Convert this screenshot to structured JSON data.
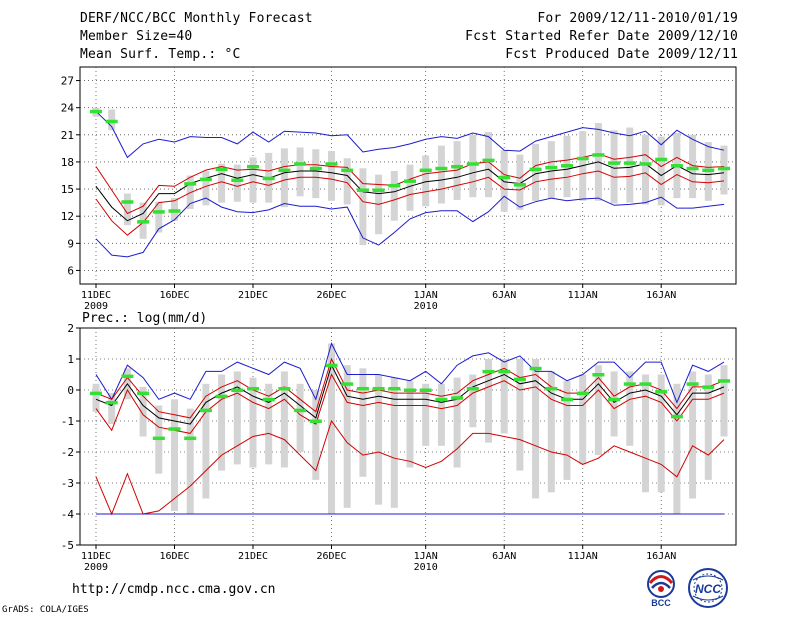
{
  "header": {
    "title": "DERF/NCC/BCC Monthly Forecast",
    "member_size": "Member Size=40",
    "variable1": "Mean Surf. Temp.: °C",
    "period": "For 2009/12/11-2010/01/19",
    "started": "Fcst Started Refer Date 2009/12/10",
    "produced": "Fcst Produced Date 2009/12/11"
  },
  "footer": {
    "url": "http://cmdp.ncc.cma.gov.cn",
    "grads": "GrADS: COLA/IGES"
  },
  "logos": {
    "bcc": "BCC",
    "ncc": "NCC"
  },
  "colors": {
    "box": "#d4d4d4",
    "mean": "#000000",
    "red": "#d40000",
    "blue": "#1c1cd0",
    "green": "#33e033",
    "grid": "#555555"
  },
  "chart_data": [
    {
      "type": "line",
      "title": "Mean Surf. Temp.: °C",
      "ylim": [
        4.5,
        28.5
      ],
      "yticks": [
        6,
        9,
        12,
        15,
        18,
        21,
        24,
        27
      ],
      "xtick_labels": [
        {
          "day": 0,
          "label": "11DEC",
          "sub": "2009"
        },
        {
          "day": 5,
          "label": "16DEC",
          "sub": ""
        },
        {
          "day": 10,
          "label": "21DEC",
          "sub": ""
        },
        {
          "day": 15,
          "label": "26DEC",
          "sub": ""
        },
        {
          "day": 21,
          "label": "1JAN",
          "sub": "2010"
        },
        {
          "day": 26,
          "label": "6JAN",
          "sub": ""
        },
        {
          "day": 31,
          "label": "11JAN",
          "sub": ""
        },
        {
          "day": 36,
          "label": "16JAN",
          "sub": ""
        }
      ],
      "days": 40,
      "green_markers": [
        23.6,
        22.5,
        13.6,
        11.4,
        12.5,
        12.6,
        15.6,
        16.1,
        17.2,
        16.0,
        17.5,
        16.2,
        17.1,
        17.8,
        17.3,
        17.8,
        17.1,
        14.9,
        14.9,
        15.4,
        15.9,
        17.1,
        17.3,
        17.5,
        17.8,
        18.2,
        16.3,
        15.5,
        17.2,
        17.4,
        17.6,
        18.4,
        18.8,
        17.9,
        17.9,
        17.8,
        18.3,
        17.6,
        17.3,
        17.1,
        17.3
      ],
      "box_high": [
        24.0,
        23.8,
        14.5,
        13.5,
        13.6,
        14.0,
        16.5,
        17.0,
        17.8,
        17.7,
        18.5,
        19.0,
        19.5,
        19.6,
        19.4,
        19.2,
        18.4,
        17.3,
        16.6,
        17.0,
        17.7,
        18.7,
        19.8,
        20.3,
        21.0,
        21.3,
        19.3,
        18.8,
        20.0,
        20.3,
        20.9,
        21.4,
        22.3,
        21.5,
        21.8,
        21.0,
        20.8,
        21.2,
        21.0,
        20.2,
        19.8
      ],
      "box_low": [
        23.0,
        21.5,
        11.0,
        9.5,
        10.2,
        11.5,
        12.8,
        13.2,
        13.5,
        13.6,
        13.5,
        13.5,
        13.0,
        14.2,
        14.0,
        13.7,
        13.3,
        8.8,
        10.0,
        11.5,
        12.6,
        13.1,
        13.4,
        13.8,
        14.1,
        14.1,
        12.5,
        12.7,
        13.7,
        14.0,
        14.1,
        13.7,
        13.7,
        13.4,
        13.5,
        13.3,
        13.2,
        14.0,
        14.0,
        13.7,
        14.4
      ],
      "series": [
        {
          "name": "blue_max",
          "color": "blue",
          "values": [
            23.6,
            21.9,
            18.5,
            20.0,
            20.5,
            20.2,
            20.8,
            20.7,
            20.7,
            20.0,
            21.3,
            20.2,
            21.4,
            21.3,
            21.2,
            20.9,
            21.0,
            19.1,
            19.4,
            19.6,
            20.0,
            20.5,
            20.8,
            20.6,
            21.2,
            20.8,
            19.3,
            19.2,
            20.3,
            20.8,
            21.3,
            21.8,
            21.6,
            21.2,
            20.9,
            21.4,
            19.9,
            21.5,
            20.5,
            19.7,
            19.3
          ]
        },
        {
          "name": "red_upper",
          "color": "red",
          "values": [
            17.5,
            14.9,
            12.3,
            13.1,
            15.4,
            15.3,
            16.3,
            17.1,
            17.5,
            17.1,
            17.2,
            17.0,
            17.5,
            17.7,
            17.7,
            17.5,
            17.4,
            15.6,
            15.5,
            15.4,
            16.1,
            16.7,
            16.9,
            17.1,
            17.8,
            18.0,
            16.6,
            16.2,
            17.6,
            18.0,
            18.2,
            18.5,
            18.9,
            18.3,
            18.5,
            18.8,
            17.5,
            18.5,
            17.6,
            17.4,
            17.5
          ]
        },
        {
          "name": "ensemble_mean",
          "color": "mean",
          "values": [
            15.3,
            13.0,
            11.5,
            12.3,
            14.5,
            14.5,
            15.6,
            16.2,
            16.7,
            16.2,
            16.6,
            16.2,
            16.8,
            17.0,
            17.0,
            16.8,
            16.5,
            14.7,
            14.5,
            14.7,
            15.3,
            15.8,
            16.0,
            16.3,
            16.8,
            17.2,
            15.8,
            15.6,
            16.7,
            17.0,
            17.2,
            17.6,
            18.0,
            17.3,
            17.4,
            17.8,
            16.5,
            17.6,
            16.7,
            16.6,
            16.8
          ]
        },
        {
          "name": "red_lower",
          "color": "red",
          "values": [
            13.9,
            11.5,
            9.9,
            11.3,
            13.5,
            13.7,
            14.6,
            15.3,
            15.8,
            15.3,
            15.8,
            15.4,
            16.0,
            16.3,
            16.3,
            16.1,
            15.7,
            13.6,
            13.3,
            13.8,
            14.4,
            14.7,
            15.0,
            15.4,
            15.8,
            16.3,
            15.0,
            14.9,
            15.8,
            16.1,
            16.3,
            16.7,
            17.0,
            16.3,
            16.4,
            16.8,
            15.5,
            16.6,
            15.8,
            15.7,
            15.9
          ]
        },
        {
          "name": "blue_min",
          "color": "blue",
          "values": [
            9.5,
            7.7,
            7.5,
            8.0,
            10.6,
            11.6,
            13.4,
            14.0,
            13.0,
            12.5,
            12.4,
            12.7,
            13.4,
            13.1,
            13.1,
            12.8,
            13.0,
            9.6,
            8.8,
            10.2,
            11.7,
            12.4,
            12.6,
            12.6,
            11.4,
            12.5,
            14.2,
            13.0,
            13.6,
            14.0,
            13.7,
            13.9,
            14.0,
            13.2,
            13.3,
            13.5,
            14.1,
            12.9,
            12.9,
            13.1,
            13.3
          ]
        }
      ]
    },
    {
      "type": "line",
      "title": "Prec.: log(mm/d)",
      "ylim": [
        -5,
        2
      ],
      "yticks": [
        -5,
        -4,
        -3,
        -2,
        -1,
        0,
        1,
        2
      ],
      "xtick_labels": [
        {
          "day": 0,
          "label": "11DEC",
          "sub": "2009"
        },
        {
          "day": 5,
          "label": "16DEC",
          "sub": ""
        },
        {
          "day": 10,
          "label": "21DEC",
          "sub": ""
        },
        {
          "day": 15,
          "label": "26DEC",
          "sub": ""
        },
        {
          "day": 21,
          "label": "1JAN",
          "sub": "2010"
        },
        {
          "day": 26,
          "label": "6JAN",
          "sub": ""
        },
        {
          "day": 31,
          "label": "11JAN",
          "sub": ""
        },
        {
          "day": 36,
          "label": "16JAN",
          "sub": ""
        }
      ],
      "days": 40,
      "green_markers": [
        -0.1,
        -0.4,
        0.45,
        -0.1,
        -1.55,
        -1.25,
        -1.55,
        -0.65,
        -0.2,
        0.0,
        0.05,
        -0.3,
        0.05,
        -0.65,
        -1.0,
        0.8,
        0.2,
        0.05,
        0.05,
        0.05,
        0.0,
        0.0,
        -0.3,
        -0.25,
        0.05,
        0.6,
        0.6,
        0.35,
        0.7,
        0.05,
        -0.3,
        -0.1,
        0.5,
        -0.3,
        0.2,
        0.2,
        -0.05,
        -0.85,
        0.2,
        0.1,
        0.3
      ],
      "box_high": [
        0.2,
        -0.1,
        0.7,
        0.1,
        -0.5,
        -0.3,
        -0.6,
        0.2,
        0.5,
        0.6,
        0.4,
        0.2,
        0.6,
        0.2,
        0.0,
        1.5,
        0.8,
        0.7,
        0.5,
        0.4,
        0.3,
        0.2,
        0.2,
        0.4,
        0.5,
        1.0,
        1.0,
        1.0,
        1.0,
        0.6,
        0.3,
        0.5,
        0.8,
        0.6,
        0.6,
        0.5,
        0.5,
        0.2,
        0.6,
        0.5,
        0.8
      ],
      "box_low": [
        -0.7,
        -1.1,
        -0.3,
        -1.5,
        -2.7,
        -3.9,
        -4.0,
        -3.5,
        -2.6,
        -2.4,
        -2.5,
        -2.4,
        -2.5,
        -2.0,
        -2.9,
        -4.0,
        -3.8,
        -2.8,
        -3.7,
        -3.8,
        -2.5,
        -1.8,
        -1.8,
        -2.5,
        -1.2,
        -1.7,
        -1.4,
        -2.6,
        -3.5,
        -3.3,
        -2.9,
        -2.4,
        -2.1,
        -1.5,
        -1.8,
        -3.3,
        -3.3,
        -4.0,
        -3.5,
        -2.9,
        -1.5
      ],
      "series": [
        {
          "name": "blue_max",
          "color": "blue",
          "values": [
            0.5,
            -0.3,
            0.8,
            0.4,
            -0.3,
            -0.1,
            -0.3,
            0.6,
            0.6,
            0.9,
            0.7,
            0.5,
            0.9,
            0.7,
            -0.3,
            1.5,
            0.5,
            0.5,
            0.5,
            0.4,
            0.3,
            0.6,
            0.2,
            0.8,
            1.1,
            1.2,
            0.9,
            1.1,
            0.6,
            0.6,
            0.3,
            0.5,
            0.9,
            0.9,
            0.4,
            0.9,
            0.9,
            -0.4,
            0.8,
            0.6,
            0.9
          ]
        },
        {
          "name": "red_upper",
          "color": "red",
          "values": [
            -0.1,
            -0.3,
            0.4,
            -0.2,
            -0.7,
            -0.8,
            -0.9,
            -0.2,
            0.1,
            0.3,
            0.0,
            -0.2,
            0.1,
            -0.3,
            -0.7,
            1.0,
            0.0,
            -0.1,
            0.0,
            -0.1,
            -0.1,
            -0.1,
            -0.2,
            -0.1,
            0.3,
            0.5,
            0.7,
            0.4,
            0.5,
            0.1,
            -0.1,
            -0.1,
            0.4,
            -0.2,
            0.1,
            0.2,
            0.0,
            -0.6,
            0.1,
            0.1,
            0.3
          ]
        },
        {
          "name": "ensemble_mean",
          "color": "mean",
          "values": [
            -0.3,
            -0.5,
            0.2,
            -0.5,
            -0.9,
            -1.0,
            -1.1,
            -0.4,
            -0.1,
            0.1,
            -0.2,
            -0.4,
            -0.1,
            -0.5,
            -0.9,
            0.8,
            -0.2,
            -0.3,
            -0.2,
            -0.3,
            -0.3,
            -0.3,
            -0.4,
            -0.3,
            0.1,
            0.3,
            0.5,
            0.2,
            0.3,
            -0.1,
            -0.3,
            -0.3,
            0.2,
            -0.4,
            -0.1,
            0.0,
            -0.2,
            -0.8,
            -0.1,
            -0.1,
            0.1
          ]
        },
        {
          "name": "red_lower",
          "color": "red",
          "values": [
            -0.6,
            -1.3,
            0.0,
            -0.8,
            -1.2,
            -1.3,
            -1.4,
            -0.7,
            -0.3,
            -0.1,
            -0.4,
            -0.6,
            -0.3,
            -0.8,
            -1.1,
            0.5,
            -0.4,
            -0.5,
            -0.4,
            -0.5,
            -0.5,
            -0.5,
            -0.6,
            -0.5,
            -0.1,
            0.1,
            0.3,
            0.0,
            0.1,
            -0.3,
            -0.5,
            -0.5,
            0.0,
            -0.6,
            -0.3,
            -0.2,
            -0.4,
            -1.0,
            -0.3,
            -0.3,
            -0.1
          ]
        },
        {
          "name": "red_min",
          "color": "red",
          "values": [
            -2.8,
            -4.0,
            -2.7,
            -4.0,
            -3.9,
            -3.5,
            -3.1,
            -2.6,
            -2.1,
            -1.8,
            -1.5,
            -1.4,
            -1.6,
            -2.1,
            -2.6,
            -1.0,
            -1.7,
            -2.1,
            -2.0,
            -2.2,
            -2.3,
            -2.5,
            -2.3,
            -1.9,
            -1.4,
            -1.4,
            -1.5,
            -1.6,
            -1.8,
            -2.0,
            -2.1,
            -2.4,
            -2.2,
            -1.8,
            -2.0,
            -2.2,
            -2.4,
            -2.8,
            -1.8,
            -2.1,
            -1.6
          ]
        },
        {
          "name": "blue_min",
          "color": "blue",
          "values": [
            -4.0,
            -4.0,
            -4.0,
            -4.0,
            -4.0,
            -4.0,
            -4.0,
            -4.0,
            -4.0,
            -4.0,
            -4.0,
            -4.0,
            -4.0,
            -4.0,
            -4.0,
            -4.0,
            -4.0,
            -4.0,
            -4.0,
            -4.0,
            -4.0,
            -4.0,
            -4.0,
            -4.0,
            -4.0,
            -4.0,
            -4.0,
            -4.0,
            -4.0,
            -4.0,
            -4.0,
            -4.0,
            -4.0,
            -4.0,
            -4.0,
            -4.0,
            -4.0,
            -4.0,
            -4.0,
            -4.0,
            -4.0
          ]
        }
      ]
    }
  ]
}
